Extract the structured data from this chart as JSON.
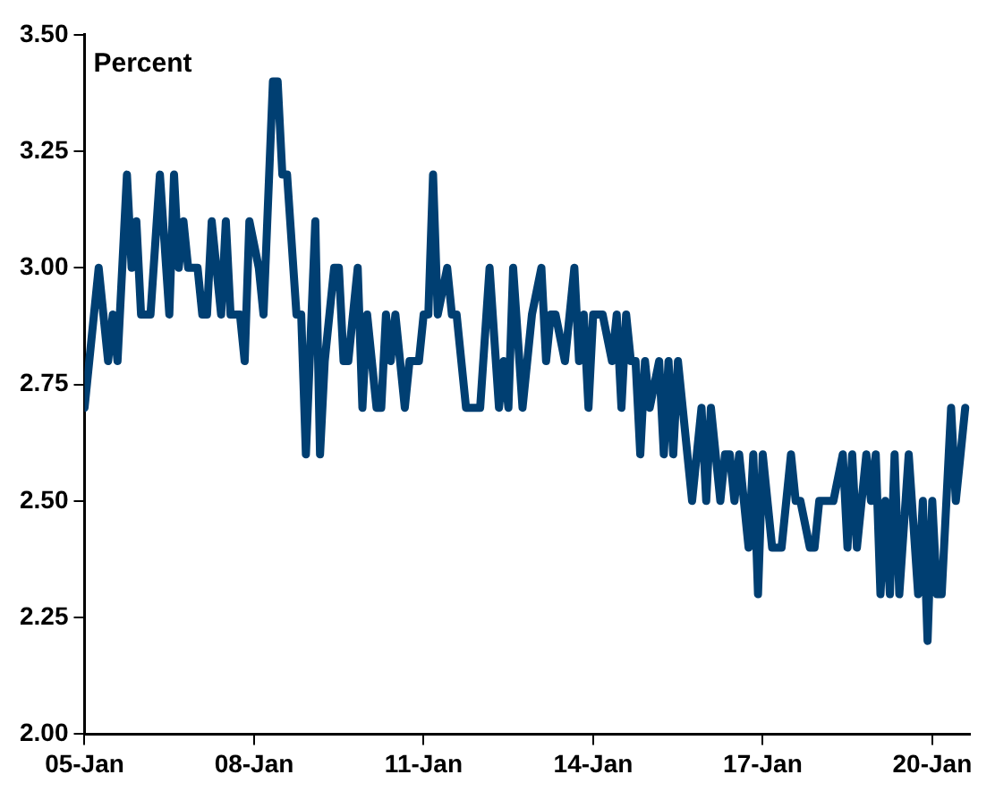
{
  "chart_data": {
    "type": "line",
    "ylabel": "Percent",
    "x": [
      "2005-01",
      "2005-04",
      "2005-06",
      "2005-07",
      "2005-08",
      "2005-10",
      "2005-11",
      "2005-12",
      "2006-01",
      "2006-03",
      "2006-05",
      "2006-07",
      "2006-08",
      "2006-09",
      "2006-10",
      "2006-11",
      "2007-01",
      "2007-02",
      "2007-03",
      "2007-04",
      "2007-06",
      "2007-07",
      "2007-08",
      "2007-10",
      "2007-11",
      "2007-12",
      "2008-02",
      "2008-03",
      "2008-05",
      "2008-06",
      "2008-07",
      "2008-08",
      "2008-10",
      "2008-11",
      "2008-12",
      "2009-02",
      "2009-03",
      "2009-04",
      "2009-06",
      "2009-07",
      "2009-08",
      "2009-09",
      "2009-11",
      "2009-12",
      "2010-01",
      "2010-03",
      "2010-04",
      "2010-05",
      "2010-06",
      "2010-07",
      "2010-09",
      "2010-10",
      "2010-12",
      "2011-01",
      "2011-02",
      "2011-03",
      "2011-04",
      "2011-06",
      "2011-07",
      "2011-08",
      "2011-10",
      "2012-01",
      "2012-03",
      "2012-05",
      "2012-06",
      "2012-07",
      "2012-08",
      "2012-10",
      "2012-12",
      "2013-02",
      "2013-03",
      "2013-04",
      "2013-05",
      "2013-07",
      "2013-09",
      "2013-10",
      "2013-11",
      "2013-12",
      "2014-01",
      "2014-03",
      "2014-05",
      "2014-06",
      "2014-07",
      "2014-08",
      "2014-09",
      "2014-10",
      "2014-11",
      "2014-12",
      "2015-01",
      "2015-03",
      "2015-04",
      "2015-05",
      "2015-06",
      "2015-07",
      "2015-08",
      "2015-10",
      "2015-11",
      "2015-12",
      "2016-01",
      "2016-02",
      "2016-04",
      "2016-05",
      "2016-06",
      "2016-07",
      "2016-08",
      "2016-10",
      "2016-11",
      "2016-12",
      "2017-01",
      "2017-03",
      "2017-05",
      "2017-07",
      "2017-08",
      "2017-09",
      "2017-11",
      "2017-12",
      "2018-01",
      "2018-04",
      "2018-06",
      "2018-07",
      "2018-08",
      "2018-09",
      "2018-11",
      "2018-12",
      "2019-01",
      "2019-02",
      "2019-03",
      "2019-04",
      "2019-05",
      "2019-06",
      "2019-08",
      "2019-10",
      "2019-11",
      "2019-12",
      "2020-01",
      "2020-02",
      "2020-03",
      "2020-05",
      "2020-06",
      "2020-08"
    ],
    "series": [
      {
        "color": "#003f72",
        "values": [
          2.7,
          3.0,
          2.8,
          2.9,
          2.8,
          3.2,
          3.0,
          3.1,
          2.9,
          2.9,
          3.2,
          2.9,
          3.2,
          3.0,
          3.1,
          3.0,
          3.0,
          2.9,
          2.9,
          3.1,
          2.9,
          3.1,
          2.9,
          2.9,
          2.8,
          3.1,
          3.0,
          2.9,
          3.4,
          3.4,
          3.2,
          3.2,
          2.9,
          2.9,
          2.6,
          3.1,
          2.6,
          2.8,
          3.0,
          3.0,
          2.8,
          2.8,
          3.0,
          2.7,
          2.9,
          2.7,
          2.7,
          2.9,
          2.8,
          2.9,
          2.7,
          2.8,
          2.8,
          2.9,
          2.9,
          3.2,
          2.9,
          3.0,
          2.9,
          2.9,
          2.7,
          2.7,
          3.0,
          2.7,
          2.8,
          2.7,
          3.0,
          2.7,
          2.9,
          3.0,
          2.8,
          2.9,
          2.9,
          2.8,
          3.0,
          2.8,
          2.9,
          2.7,
          2.9,
          2.9,
          2.8,
          2.9,
          2.7,
          2.9,
          2.8,
          2.8,
          2.6,
          2.8,
          2.7,
          2.8,
          2.6,
          2.8,
          2.6,
          2.8,
          2.7,
          2.5,
          2.6,
          2.7,
          2.5,
          2.7,
          2.5,
          2.6,
          2.6,
          2.5,
          2.6,
          2.4,
          2.6,
          2.3,
          2.6,
          2.4,
          2.4,
          2.6,
          2.5,
          2.5,
          2.4,
          2.4,
          2.5,
          2.5,
          2.6,
          2.4,
          2.6,
          2.4,
          2.6,
          2.5,
          2.6,
          2.3,
          2.5,
          2.3,
          2.6,
          2.3,
          2.6,
          2.3,
          2.5,
          2.2,
          2.5,
          2.3,
          2.3,
          2.7,
          2.5,
          2.7
        ]
      }
    ],
    "xlim": [
      "2005-01",
      "2020-09"
    ],
    "xticks": [
      {
        "value": "2005-01",
        "label": "05-Jan"
      },
      {
        "value": "2008-01",
        "label": "08-Jan"
      },
      {
        "value": "2011-01",
        "label": "11-Jan"
      },
      {
        "value": "2014-01",
        "label": "14-Jan"
      },
      {
        "value": "2017-01",
        "label": "17-Jan"
      },
      {
        "value": "2020-01",
        "label": "20-Jan"
      }
    ],
    "ylim": [
      2,
      3.5
    ],
    "yticks": [
      {
        "value": 2,
        "label": "2.00"
      },
      {
        "value": 2.25,
        "label": "2.25"
      },
      {
        "value": 2.5,
        "label": "2.50"
      },
      {
        "value": 2.75,
        "label": "2.75"
      },
      {
        "value": 3,
        "label": "3.00"
      },
      {
        "value": 3.25,
        "label": "3.25"
      },
      {
        "value": 3.5,
        "label": "3.50"
      }
    ],
    "grid": false,
    "legend": false,
    "marker": "none",
    "line_style": "solid"
  }
}
